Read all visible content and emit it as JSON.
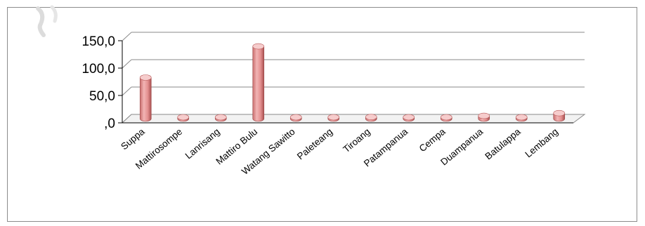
{
  "chart_data": {
    "type": "bar",
    "style": "3d-cylinder",
    "title": "",
    "xlabel": "",
    "ylabel": "",
    "ylim": [
      0,
      150
    ],
    "yticks": [
      "150,0",
      "100,0",
      "50,0",
      ",0"
    ],
    "categories": [
      "Suppa",
      "Mattirosompe",
      "Lanrisang",
      "Mattiro Bulu",
      "Watang Sawitto",
      "Paleteang",
      "Tiroang",
      "Patampanua",
      "Cempa",
      "Duampanua",
      "Batulappa",
      "Lembang"
    ],
    "series": [
      {
        "values": [
          75,
          1,
          1,
          132,
          1,
          1,
          3,
          1,
          1,
          5,
          1,
          10
        ]
      }
    ],
    "grid": true,
    "legend": "none",
    "colors": {
      "bar": "#e38f8f",
      "bar_dark": "#b85a5a",
      "bar_light": "#f6cccc",
      "grid": "#8a8a8a"
    }
  }
}
